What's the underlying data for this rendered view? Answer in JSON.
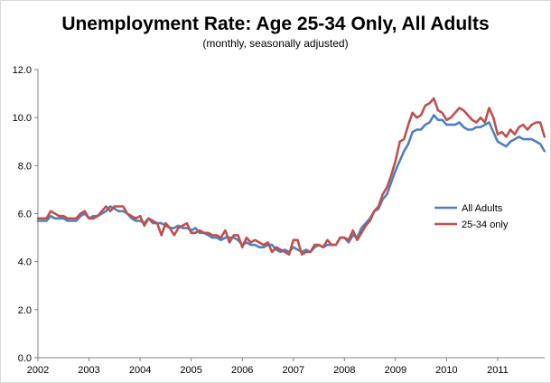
{
  "title": "Unemployment Rate: Age 25-34 Only, All Adults",
  "subtitle": "(monthly, seasonally adjusted)",
  "colors": {
    "all_adults": "#4f81bd",
    "age_25_34": "#c0504d",
    "axis": "#808080"
  },
  "chart_data": {
    "type": "line",
    "title": "Unemployment Rate: Age 25-34 Only, All Adults",
    "subtitle": "(monthly, seasonally adjusted)",
    "xlabel": "",
    "ylabel": "",
    "xlim": [
      2002,
      2011.92
    ],
    "ylim": [
      0,
      12
    ],
    "x_ticks": [
      "2002",
      "2003",
      "2004",
      "2005",
      "2006",
      "2007",
      "2008",
      "2009",
      "2010",
      "2011"
    ],
    "x_tick_values": [
      2002,
      2003,
      2004,
      2005,
      2006,
      2007,
      2008,
      2009,
      2010,
      2011
    ],
    "y_ticks": [
      "0.0",
      "2.0",
      "4.0",
      "6.0",
      "8.0",
      "10.0",
      "12.0"
    ],
    "y_tick_values": [
      0,
      2,
      4,
      6,
      8,
      10,
      12
    ],
    "grid": false,
    "legend_position": "right",
    "x_start": 2002,
    "x_step": 0.08333,
    "series": [
      {
        "name": "All Adults",
        "color": "#4f81bd",
        "values": [
          5.7,
          5.7,
          5.7,
          5.9,
          5.8,
          5.8,
          5.8,
          5.7,
          5.7,
          5.7,
          5.9,
          6.0,
          5.8,
          5.9,
          5.9,
          6.0,
          6.1,
          6.3,
          6.2,
          6.1,
          6.1,
          6.0,
          5.8,
          5.7,
          5.7,
          5.6,
          5.8,
          5.6,
          5.6,
          5.6,
          5.5,
          5.4,
          5.4,
          5.5,
          5.4,
          5.4,
          5.3,
          5.4,
          5.2,
          5.2,
          5.1,
          5.0,
          5.0,
          4.9,
          5.0,
          5.0,
          5.0,
          4.9,
          4.7,
          4.8,
          4.7,
          4.7,
          4.6,
          4.6,
          4.7,
          4.7,
          4.5,
          4.4,
          4.5,
          4.4,
          4.6,
          4.5,
          4.4,
          4.5,
          4.4,
          4.6,
          4.7,
          4.6,
          4.7,
          4.7,
          4.7,
          5.0,
          5.0,
          4.8,
          5.1,
          5.0,
          5.4,
          5.6,
          5.8,
          6.1,
          6.2,
          6.6,
          6.8,
          7.3,
          7.8,
          8.2,
          8.6,
          8.9,
          9.4,
          9.5,
          9.5,
          9.7,
          9.8,
          10.1,
          9.9,
          9.9,
          9.7,
          9.7,
          9.7,
          9.8,
          9.6,
          9.5,
          9.5,
          9.6,
          9.6,
          9.7,
          9.8,
          9.4,
          9.0,
          8.9,
          8.8,
          9.0,
          9.1,
          9.2,
          9.1,
          9.1,
          9.1,
          9.0,
          8.9,
          8.6
        ]
      },
      {
        "name": "25-34 only",
        "color": "#c0504d",
        "values": [
          5.8,
          5.8,
          5.8,
          6.1,
          6.0,
          5.9,
          5.9,
          5.8,
          5.8,
          5.8,
          6.0,
          6.1,
          5.8,
          5.8,
          5.9,
          6.1,
          6.3,
          6.1,
          6.3,
          6.3,
          6.3,
          6.0,
          5.9,
          5.8,
          5.9,
          5.5,
          5.8,
          5.7,
          5.6,
          5.1,
          5.6,
          5.4,
          5.1,
          5.4,
          5.5,
          5.6,
          5.2,
          5.2,
          5.3,
          5.2,
          5.2,
          5.1,
          5.1,
          5.0,
          5.3,
          4.8,
          5.1,
          5.1,
          4.6,
          5.0,
          4.8,
          4.9,
          4.8,
          4.7,
          4.8,
          4.4,
          4.6,
          4.5,
          4.4,
          4.3,
          4.9,
          4.9,
          4.3,
          4.4,
          4.4,
          4.7,
          4.7,
          4.6,
          4.9,
          4.7,
          4.7,
          5.0,
          5.0,
          4.9,
          5.3,
          4.9,
          5.2,
          5.5,
          5.7,
          6.1,
          6.3,
          6.8,
          7.1,
          7.6,
          8.2,
          9.0,
          9.1,
          9.7,
          10.2,
          10.0,
          10.1,
          10.5,
          10.6,
          10.8,
          10.3,
          10.2,
          9.9,
          10.0,
          10.2,
          10.4,
          10.3,
          10.1,
          9.9,
          9.8,
          10.0,
          9.8,
          10.4,
          10.0,
          9.3,
          9.4,
          9.2,
          9.5,
          9.3,
          9.6,
          9.7,
          9.5,
          9.7,
          9.8,
          9.8,
          9.2
        ]
      }
    ]
  }
}
